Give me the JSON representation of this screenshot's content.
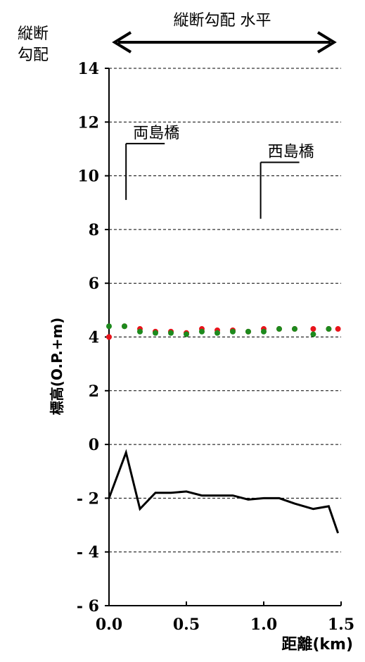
{
  "chart_data": {
    "type": "scatter",
    "title": "縦断勾配 水平",
    "header_label_line1": "縦断",
    "header_label_line2": "勾配",
    "ylabel": "標高(O.P.+m)",
    "xlabel": "距離(km)",
    "xlim": [
      0,
      1.5
    ],
    "ylim": [
      -6,
      14
    ],
    "yticks": [
      14,
      12,
      10,
      8,
      6,
      4,
      2,
      0,
      -2,
      -4,
      -6
    ],
    "ytick_labels": [
      "14",
      "12",
      "10",
      "8",
      "6",
      "4",
      "2",
      "0",
      "- 2",
      "- 4",
      "- 6"
    ],
    "xticks": [
      0.0,
      0.5,
      1.0,
      1.5
    ],
    "xtick_labels": [
      "0.0",
      "0.5",
      "1.0",
      "1.5"
    ],
    "grid": "horizontal dashed",
    "colors": {
      "red_points": "#e8141b",
      "green_points": "#1d8a1d",
      "line": "#000000"
    },
    "annotations": [
      {
        "text": "両島橋",
        "x": 0.11,
        "y_from": 9.1,
        "y_to": 11.2
      },
      {
        "text": "西島橋",
        "x": 0.98,
        "y_from": 8.4,
        "y_to": 10.5
      }
    ],
    "series": [
      {
        "marker": "red",
        "x": [
          0.0,
          0.1,
          0.2,
          0.3,
          0.4,
          0.5,
          0.6,
          0.7,
          0.8,
          0.9,
          1.0,
          1.1,
          1.2,
          1.32,
          1.42,
          1.48
        ],
        "y": [
          4.0,
          4.4,
          4.3,
          4.2,
          4.2,
          4.15,
          4.3,
          4.25,
          4.25,
          4.2,
          4.3,
          4.3,
          4.3,
          4.3,
          4.3,
          4.3
        ]
      },
      {
        "marker": "green",
        "x": [
          0.0,
          0.1,
          0.2,
          0.3,
          0.4,
          0.5,
          0.6,
          0.7,
          0.8,
          0.9,
          1.0,
          1.1,
          1.2,
          1.32,
          1.42
        ],
        "y": [
          4.4,
          4.4,
          4.2,
          4.15,
          4.15,
          4.1,
          4.2,
          4.15,
          4.2,
          4.2,
          4.2,
          4.3,
          4.3,
          4.1,
          4.3
        ]
      },
      {
        "marker": "line",
        "x": [
          0.0,
          0.11,
          0.2,
          0.3,
          0.4,
          0.5,
          0.6,
          0.7,
          0.8,
          0.9,
          1.0,
          1.1,
          1.2,
          1.32,
          1.42,
          1.48
        ],
        "y": [
          -2.0,
          -0.3,
          -2.4,
          -1.8,
          -1.8,
          -1.75,
          -1.9,
          -1.9,
          -1.9,
          -2.05,
          -2.0,
          -2.0,
          -2.2,
          -2.4,
          -2.3,
          -3.3
        ]
      }
    ]
  }
}
